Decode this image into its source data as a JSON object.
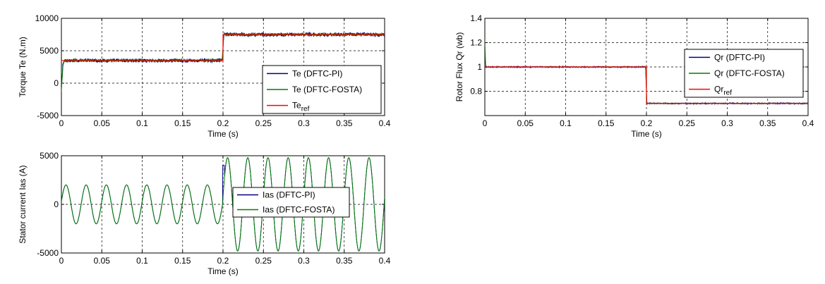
{
  "chart_data": [
    {
      "id": "torque",
      "type": "line",
      "xlabel": "Time (s)",
      "ylabel": "Torque Te (N.m)",
      "xlim": [
        0,
        0.4
      ],
      "ylim": [
        -5000,
        10000
      ],
      "xticks": [
        "0",
        "0.05",
        "0.1",
        "0.15",
        "0.2",
        "0.25",
        "0.3",
        "0.35",
        "0.4"
      ],
      "yticks": [
        "-5000",
        "0",
        "5000",
        "10000"
      ],
      "grid": true,
      "legend_position": "lower-right",
      "series": [
        {
          "name": "Te (DFTC-PI)",
          "color": "#00008b",
          "x": [
            0,
            0.002,
            0.004,
            0.199,
            0.201,
            0.4
          ],
          "y": [
            -800,
            3200,
            3500,
            3500,
            7500,
            7500
          ],
          "ripple": 300
        },
        {
          "name": "Te (DFTC-FOSTA)",
          "color": "#007f00",
          "x": [
            0,
            0.002,
            0.004,
            0.199,
            0.201,
            0.4
          ],
          "y": [
            -1200,
            3000,
            3500,
            3500,
            7500,
            7500
          ],
          "ripple": 250
        },
        {
          "name": "Te",
          "sub": "ref",
          "color": "#ff0000",
          "x": [
            0,
            0.2,
            0.2,
            0.4
          ],
          "y": [
            3500,
            3500,
            7500,
            7500
          ],
          "ripple": 0
        }
      ]
    },
    {
      "id": "flux",
      "type": "line",
      "xlabel": "Time (s)",
      "ylabel": "Rotor Flux Qr (wb)",
      "xlim": [
        0,
        0.4
      ],
      "ylim": [
        0.6,
        1.4
      ],
      "xticks": [
        "0",
        "0.05",
        "0.1",
        "0.15",
        "0.2",
        "0.25",
        "0.3",
        "0.35",
        "0.4"
      ],
      "yticks": [
        "0.8",
        "1",
        "1.2",
        "1.4"
      ],
      "grid": true,
      "legend_position": "right",
      "series": [
        {
          "name": "Qr (DFTC-PI)",
          "color": "#00008b",
          "x": [
            0,
            0.001,
            0.199,
            0.2005,
            0.4
          ],
          "y": [
            1.0,
            1.0,
            1.0,
            0.7,
            0.7
          ],
          "ripple": 0.006
        },
        {
          "name": "Qr (DFTC-FOSTA)",
          "color": "#007f00",
          "x": [
            0,
            0.001,
            0.002,
            0.199,
            0.2005,
            0.4
          ],
          "y": [
            1.22,
            1.0,
            1.0,
            1.0,
            0.7,
            0.7
          ],
          "ripple": 0.004
        },
        {
          "name": "Qr",
          "sub": "ref",
          "color": "#ff0000",
          "x": [
            0,
            0.2,
            0.2,
            0.4
          ],
          "y": [
            1.0,
            1.0,
            0.7,
            0.7
          ],
          "ripple": 0
        }
      ]
    },
    {
      "id": "current",
      "type": "line",
      "xlabel": "Time (s)",
      "ylabel": "Stator current Ias (A)",
      "xlim": [
        0,
        0.4
      ],
      "ylim": [
        -5000,
        5000
      ],
      "xticks": [
        "0",
        "0.05",
        "0.1",
        "0.15",
        "0.2",
        "0.25",
        "0.3",
        "0.35",
        "0.4"
      ],
      "yticks": [
        "-5000",
        "0",
        "5000"
      ],
      "grid": true,
      "legend_position": "right",
      "series": [
        {
          "name": "Ias (DFTC-PI)",
          "color": "#00008b",
          "freq_hz": 40,
          "amplitude_before": 2000,
          "amplitude_after": 4800,
          "step_time": 0.2
        },
        {
          "name": "Ias (DFTC-FOSTA)",
          "color": "#007f00",
          "freq_hz": 40,
          "amplitude_before": 2000,
          "amplitude_after": 4800,
          "step_time": 0.2
        }
      ]
    }
  ]
}
